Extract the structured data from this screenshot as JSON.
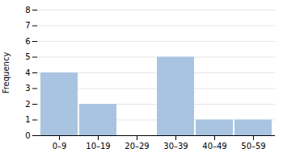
{
  "chart_data": {
    "type": "bar",
    "categories": [
      "0–9",
      "10–19",
      "20–29",
      "30–39",
      "40–49",
      "50–59"
    ],
    "values": [
      4,
      2,
      0,
      5,
      1,
      1
    ],
    "color": "#a8c4e0",
    "ylabel": "Frequency",
    "ylim": [
      0,
      8
    ],
    "yticks": [
      0,
      1,
      2,
      3,
      4,
      5,
      6,
      7,
      8
    ],
    "grid": true
  }
}
